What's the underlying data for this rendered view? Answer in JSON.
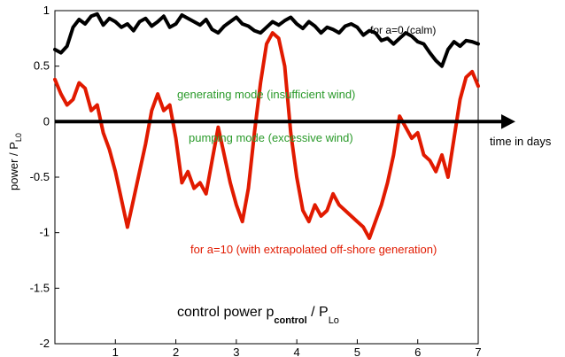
{
  "chart_data": {
    "type": "line",
    "xlabel": "time in days",
    "ylabel": {
      "main": "power / P",
      "sub": "L0"
    },
    "xlim": [
      0,
      7
    ],
    "ylim": [
      -2,
      1
    ],
    "xticks": [
      "1",
      "2",
      "3",
      "4",
      "5",
      "6",
      "7"
    ],
    "yticks": [
      "1",
      "0.5",
      "0",
      "-0.5",
      "-1",
      "-1.5",
      "-2"
    ],
    "grid": false,
    "annotations": {
      "generating": "generating mode (insufficient wind)",
      "pumping": "pumping mode (excessive wind)",
      "control": {
        "main": "control power p",
        "sub1": "control",
        "mid": " / P",
        "sub2": "Lo"
      }
    },
    "series": [
      {
        "name": "for a=0 (calm)",
        "color": "#000000",
        "x": [
          0,
          0.1,
          0.2,
          0.3,
          0.4,
          0.5,
          0.6,
          0.7,
          0.8,
          0.9,
          1.0,
          1.1,
          1.2,
          1.3,
          1.4,
          1.5,
          1.6,
          1.7,
          1.8,
          1.9,
          2.0,
          2.1,
          2.2,
          2.3,
          2.4,
          2.5,
          2.6,
          2.7,
          2.8,
          2.9,
          3.0,
          3.1,
          3.2,
          3.3,
          3.4,
          3.5,
          3.6,
          3.7,
          3.8,
          3.9,
          4.0,
          4.1,
          4.2,
          4.3,
          4.4,
          4.5,
          4.6,
          4.7,
          4.8,
          4.9,
          5.0,
          5.1,
          5.2,
          5.3,
          5.4,
          5.5,
          5.6,
          5.7,
          5.8,
          5.9,
          6.0,
          6.1,
          6.2,
          6.3,
          6.4,
          6.5,
          6.6,
          6.7,
          6.8,
          6.9,
          7.0
        ],
        "values": [
          0.65,
          0.62,
          0.68,
          0.85,
          0.92,
          0.88,
          0.95,
          0.97,
          0.87,
          0.93,
          0.9,
          0.85,
          0.88,
          0.82,
          0.9,
          0.93,
          0.86,
          0.9,
          0.95,
          0.85,
          0.88,
          0.96,
          0.93,
          0.9,
          0.87,
          0.92,
          0.83,
          0.8,
          0.86,
          0.9,
          0.94,
          0.88,
          0.86,
          0.82,
          0.8,
          0.85,
          0.9,
          0.87,
          0.91,
          0.94,
          0.88,
          0.84,
          0.9,
          0.86,
          0.8,
          0.85,
          0.83,
          0.8,
          0.86,
          0.88,
          0.85,
          0.78,
          0.82,
          0.8,
          0.73,
          0.75,
          0.7,
          0.75,
          0.8,
          0.77,
          0.72,
          0.7,
          0.62,
          0.55,
          0.5,
          0.65,
          0.72,
          0.68,
          0.73,
          0.72,
          0.7
        ]
      },
      {
        "name": "for a=10 (with extrapolated off-shore generation)",
        "color": "#e11a00",
        "x": [
          0,
          0.1,
          0.2,
          0.3,
          0.4,
          0.5,
          0.6,
          0.7,
          0.8,
          0.9,
          1.0,
          1.1,
          1.2,
          1.3,
          1.4,
          1.5,
          1.6,
          1.7,
          1.8,
          1.9,
          2.0,
          2.1,
          2.2,
          2.3,
          2.4,
          2.5,
          2.6,
          2.7,
          2.8,
          2.9,
          3.0,
          3.1,
          3.2,
          3.3,
          3.4,
          3.5,
          3.6,
          3.7,
          3.8,
          3.9,
          4.0,
          4.1,
          4.2,
          4.3,
          4.4,
          4.5,
          4.6,
          4.7,
          4.8,
          4.9,
          5.0,
          5.1,
          5.2,
          5.3,
          5.4,
          5.5,
          5.6,
          5.7,
          5.8,
          5.9,
          6.0,
          6.1,
          6.2,
          6.3,
          6.4,
          6.5,
          6.6,
          6.7,
          6.8,
          6.9,
          7.0
        ],
        "values": [
          0.38,
          0.25,
          0.15,
          0.2,
          0.35,
          0.3,
          0.1,
          0.15,
          -0.1,
          -0.25,
          -0.45,
          -0.7,
          -0.95,
          -0.7,
          -0.45,
          -0.2,
          0.1,
          0.25,
          0.1,
          0.15,
          -0.15,
          -0.55,
          -0.45,
          -0.6,
          -0.55,
          -0.65,
          -0.35,
          -0.05,
          -0.3,
          -0.55,
          -0.75,
          -0.9,
          -0.6,
          -0.1,
          0.35,
          0.7,
          0.8,
          0.75,
          0.5,
          -0.1,
          -0.5,
          -0.8,
          -0.9,
          -0.75,
          -0.85,
          -0.8,
          -0.65,
          -0.75,
          -0.8,
          -0.85,
          -0.9,
          -0.95,
          -1.05,
          -0.9,
          -0.75,
          -0.55,
          -0.3,
          0.05,
          -0.05,
          -0.15,
          -0.1,
          -0.3,
          -0.35,
          -0.45,
          -0.3,
          -0.5,
          -0.15,
          0.2,
          0.4,
          0.45,
          0.32
        ]
      }
    ]
  }
}
